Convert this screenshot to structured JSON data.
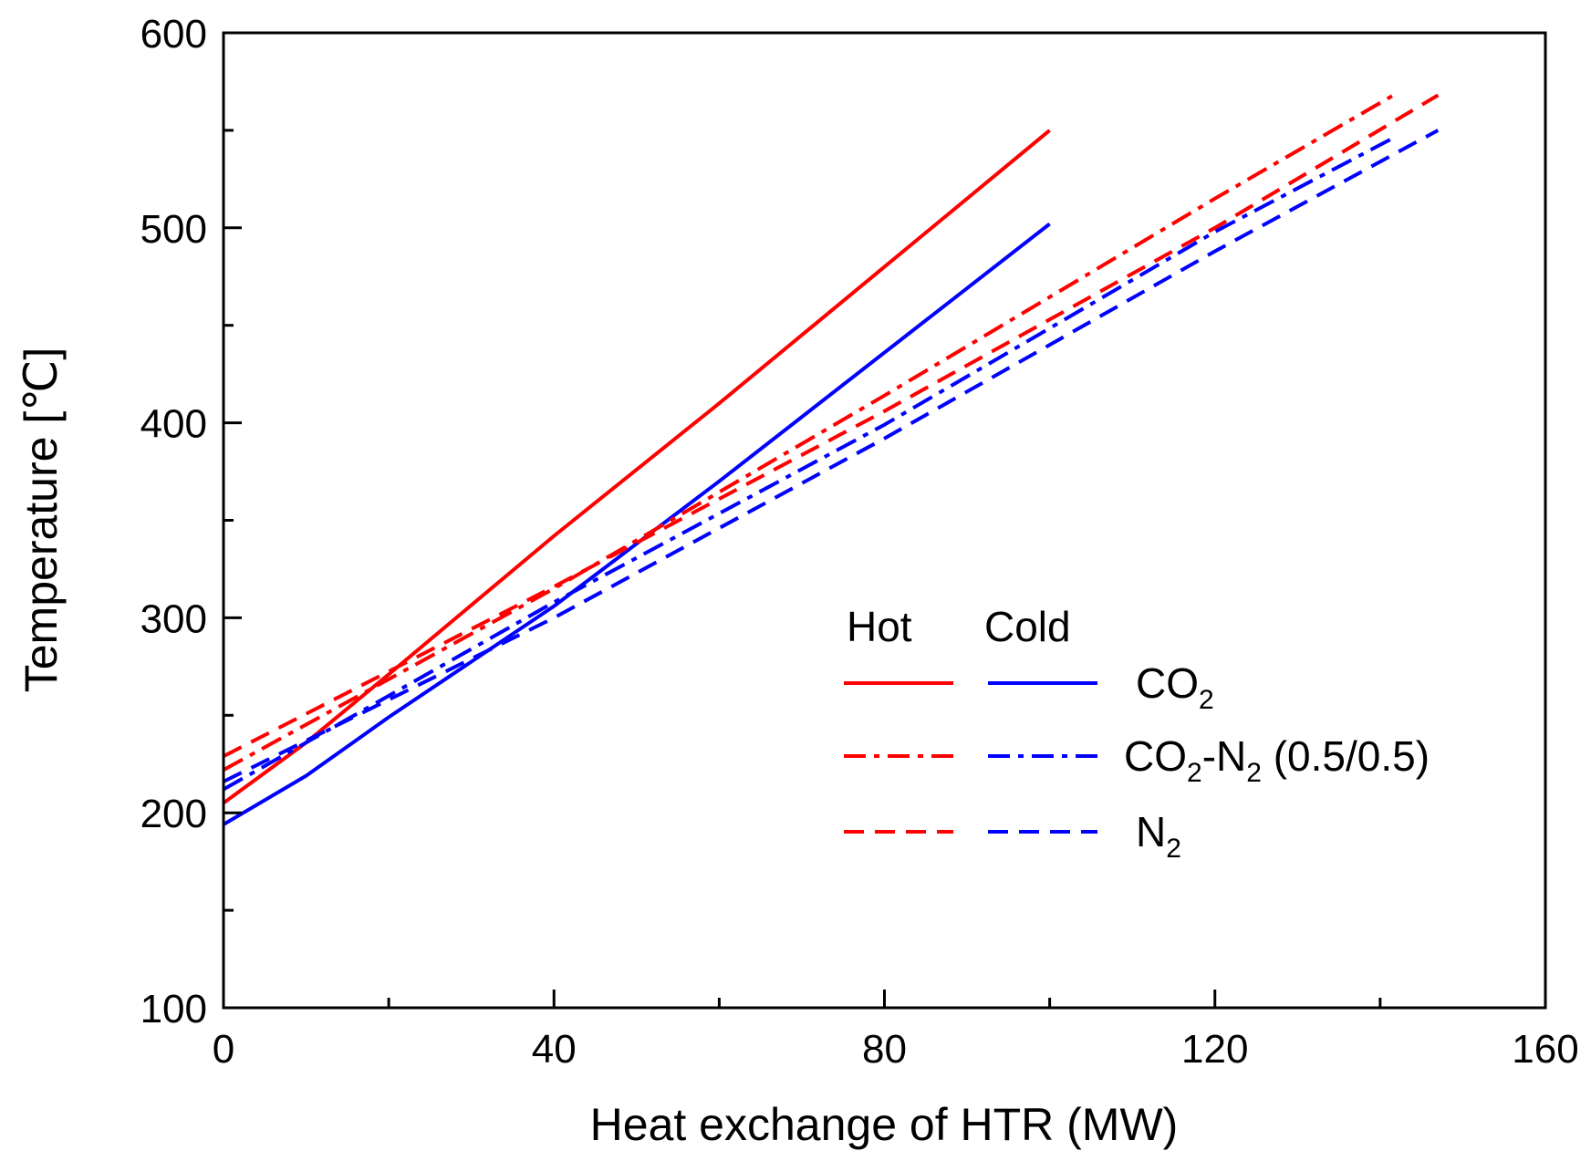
{
  "chart_data": {
    "type": "line",
    "title": "",
    "xlabel": "Heat exchange of HTR (MW)",
    "ylabel": "Temperature [℃]",
    "xlim": [
      0,
      160
    ],
    "ylim": [
      100,
      600
    ],
    "xticks": [
      0,
      40,
      80,
      120,
      160
    ],
    "yticks": [
      100,
      200,
      300,
      400,
      500,
      600
    ],
    "x_minor_step": 20,
    "y_minor_step": 50,
    "grid": false,
    "legend": {
      "position": "center-right",
      "headers": [
        "Hot",
        "Cold"
      ],
      "rows": [
        {
          "label": "CO2",
          "base": "CO",
          "sub": "2",
          "mid": "",
          "sub2": "",
          "tail": "",
          "style": "solid"
        },
        {
          "label": "CO2-N2 (0.5/0.5)",
          "base": "CO",
          "sub": "2",
          "mid": "-N",
          "sub2": "2",
          "tail": " (0.5/0.5)",
          "style": "dashdot"
        },
        {
          "label": "N2",
          "base": "N",
          "sub": "2",
          "mid": "",
          "sub2": "",
          "tail": "",
          "style": "dash"
        }
      ]
    },
    "colors": {
      "hot": "#ff0000",
      "cold": "#0000ff",
      "axis": "#000000"
    },
    "series": [
      {
        "name": "CO2 Hot",
        "stream": "hot",
        "style": "solid",
        "x": [
          0,
          10,
          20,
          40,
          60,
          80,
          100
        ],
        "y": [
          205,
          236,
          271,
          342,
          410,
          480,
          550
        ]
      },
      {
        "name": "CO2 Cold",
        "stream": "cold",
        "style": "solid",
        "x": [
          0,
          10,
          20,
          40,
          60,
          80,
          100
        ],
        "y": [
          194,
          219,
          249,
          306,
          370,
          436,
          502
        ]
      },
      {
        "name": "CO2-N2 (0.5/0.5) Hot",
        "stream": "hot",
        "style": "dashdot",
        "x": [
          0,
          40,
          80,
          120,
          142
        ],
        "y": [
          222,
          315,
          414,
          515,
          569
        ]
      },
      {
        "name": "CO2-N2 (0.5/0.5) Cold",
        "stream": "cold",
        "style": "dashdot",
        "x": [
          0,
          40,
          80,
          120,
          142
        ],
        "y": [
          212,
          308,
          399,
          498,
          547
        ]
      },
      {
        "name": "N2 Hot",
        "stream": "hot",
        "style": "dash",
        "x": [
          0,
          40,
          80,
          120,
          147
        ],
        "y": [
          229,
          316,
          406,
          500,
          568
        ]
      },
      {
        "name": "N2 Cold",
        "stream": "cold",
        "style": "dash",
        "x": [
          0,
          40,
          80,
          120,
          147
        ],
        "y": [
          216,
          300,
          392,
          488,
          550
        ]
      }
    ]
  }
}
